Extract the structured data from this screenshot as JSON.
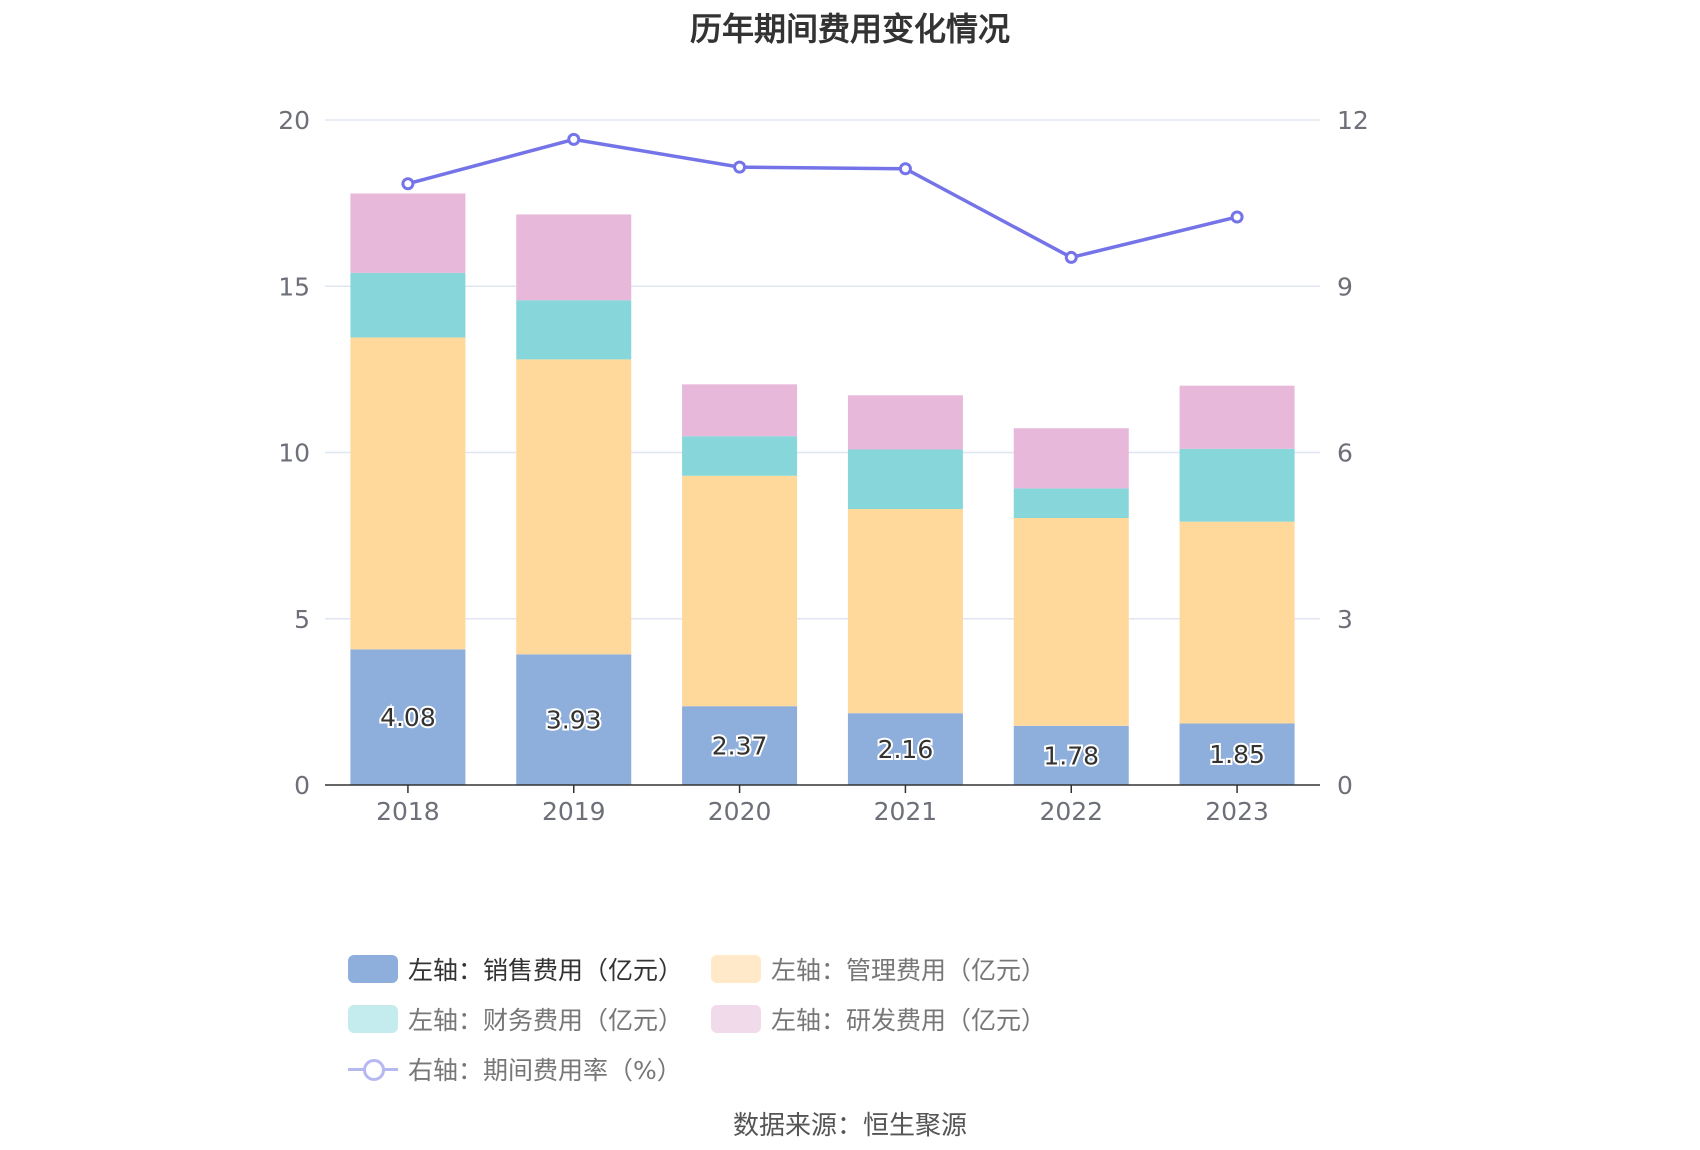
{
  "title": "历年期间费用变化情况",
  "source": "数据来源：恒生聚源",
  "colors": {
    "sales": "#8eaedb",
    "admin": "#fed99b",
    "finance": "#87d7da",
    "rnd": "#e7b8da",
    "rate": "#7474e8",
    "grid": "#e0e6f1",
    "axis": "#333333",
    "tick": "#6e7079"
  },
  "legend": [
    {
      "label": "左轴：销售费用（亿元）",
      "color": "#8eaedb",
      "type": "bar",
      "active": true
    },
    {
      "label": "左轴：管理费用（亿元）",
      "color": "#ffe9c8",
      "type": "bar",
      "active": false
    },
    {
      "label": "左轴：财务费用（亿元）",
      "color": "#c4ecee",
      "type": "bar",
      "active": false
    },
    {
      "label": "左轴：研发费用（亿元）",
      "color": "#f1dbeb",
      "type": "bar",
      "active": false
    },
    {
      "label": "右轴：期间费用率（%）",
      "color": "#b6b8f2",
      "type": "line",
      "active": false
    }
  ],
  "chart_data": {
    "type": "bar",
    "title": "历年期间费用变化情况",
    "categories": [
      "2018",
      "2019",
      "2020",
      "2021",
      "2022",
      "2023"
    ],
    "stacked": true,
    "series": [
      {
        "name": "左轴：销售费用（亿元）",
        "axis": "left",
        "values": [
          4.08,
          3.93,
          2.37,
          2.16,
          1.78,
          1.85
        ],
        "labels": [
          "4.08",
          "3.93",
          "2.37",
          "2.16",
          "1.78",
          "1.85"
        ]
      },
      {
        "name": "左轴：管理费用（亿元）",
        "axis": "left",
        "values": [
          9.38,
          8.87,
          6.93,
          6.14,
          6.25,
          6.07
        ]
      },
      {
        "name": "左轴：财务费用（亿元）",
        "axis": "left",
        "values": [
          1.94,
          1.78,
          1.19,
          1.79,
          0.89,
          2.19
        ]
      },
      {
        "name": "左轴：研发费用（亿元）",
        "axis": "left",
        "values": [
          2.39,
          2.58,
          1.56,
          1.63,
          1.81,
          1.9
        ]
      },
      {
        "name": "右轴：期间费用率（%）",
        "axis": "right",
        "type": "line",
        "values": [
          10.85,
          11.65,
          11.15,
          11.12,
          9.52,
          10.25
        ]
      }
    ],
    "left_axis": {
      "ylim": [
        0,
        20
      ],
      "ticks": [
        "0",
        "5",
        "10",
        "15",
        "20"
      ]
    },
    "right_axis": {
      "ylim": [
        0,
        12
      ],
      "ticks": [
        "0",
        "3",
        "6",
        "9",
        "12"
      ]
    },
    "grid": true,
    "legend_position": "bottom"
  }
}
